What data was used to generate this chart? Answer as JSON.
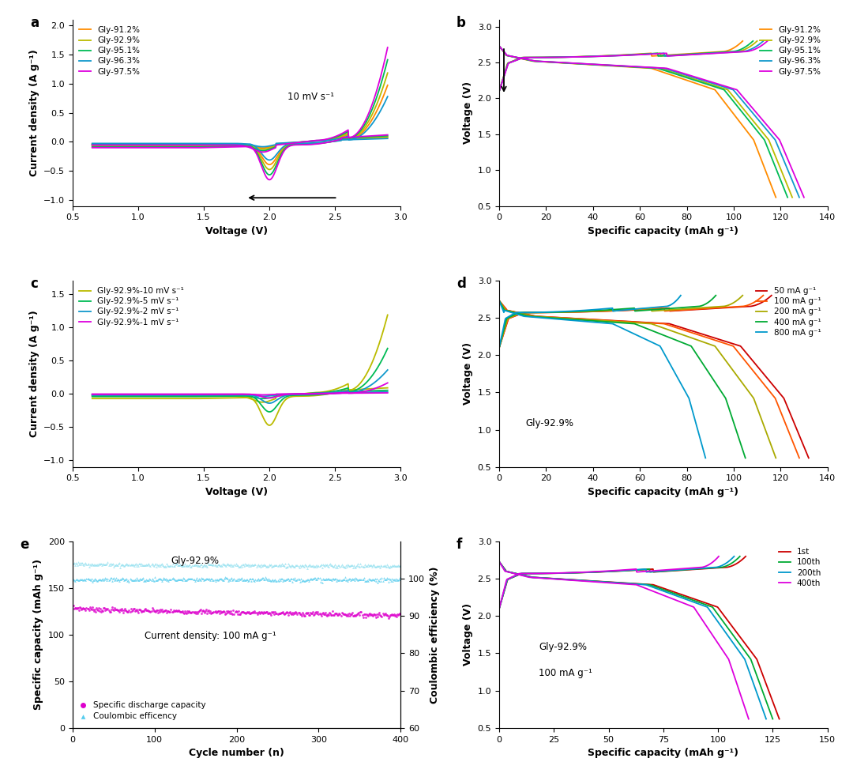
{
  "panel_a": {
    "label": "a",
    "xlabel": "Voltage (V)",
    "ylabel": "Current density (A g⁻¹)",
    "xlim": [
      0.65,
      3.0
    ],
    "ylim": [
      -1.1,
      2.1
    ],
    "xticks": [
      0.5,
      1.0,
      1.5,
      2.0,
      2.5,
      3.0
    ],
    "yticks": [
      -1.0,
      -0.5,
      0.0,
      0.5,
      1.0,
      1.5,
      2.0
    ],
    "annotation": "10 mV s⁻¹",
    "series_labels": [
      "Gly-91.2%",
      "Gly-92.9%",
      "Gly-95.1%",
      "Gly-96.3%",
      "Gly-97.5%"
    ],
    "series_colors": [
      "#FF8C00",
      "#BBBB00",
      "#00BB55",
      "#1199CC",
      "#DD00DD"
    ],
    "scales": [
      0.6,
      0.73,
      0.87,
      0.48,
      1.0
    ]
  },
  "panel_b": {
    "label": "b",
    "xlabel": "Specific capacity (mAh g⁻¹)",
    "ylabel": "Voltage (V)",
    "xlim": [
      0,
      140
    ],
    "ylim": [
      0.5,
      3.1
    ],
    "xticks": [
      0,
      20,
      40,
      60,
      80,
      100,
      120,
      140
    ],
    "yticks": [
      0.5,
      1.0,
      1.5,
      2.0,
      2.5,
      3.0
    ],
    "series_labels": [
      "Gly-91.2%",
      "Gly-92.9%",
      "Gly-95.1%",
      "Gly-96.3%",
      "Gly-97.5%"
    ],
    "series_colors": [
      "#FF8C00",
      "#BBBB00",
      "#00BB55",
      "#1199CC",
      "#DD00DD"
    ],
    "cap_discharge": [
      118,
      125,
      123,
      128,
      130
    ],
    "cap_charge": [
      10,
      10,
      10,
      10,
      10
    ]
  },
  "panel_c": {
    "label": "c",
    "xlabel": "Voltage (V)",
    "ylabel": "Current density (A g⁻¹)",
    "xlim": [
      0.65,
      3.0
    ],
    "ylim": [
      -1.1,
      1.7
    ],
    "xticks": [
      0.5,
      1.0,
      1.5,
      2.0,
      2.5,
      3.0
    ],
    "yticks": [
      -1.0,
      -0.5,
      0.0,
      0.5,
      1.0,
      1.5
    ],
    "series_labels": [
      "Gly-92.9%-10 mV s⁻¹",
      "Gly-92.9%-5 mV s⁻¹",
      "Gly-92.9%-2 mV s⁻¹",
      "Gly-92.9%-1 mV s⁻¹"
    ],
    "series_colors": [
      "#BBBB00",
      "#00BB55",
      "#1199CC",
      "#DD00DD"
    ],
    "scales": [
      0.73,
      0.42,
      0.22,
      0.1
    ]
  },
  "panel_d": {
    "label": "d",
    "xlabel": "Specific capacity (mAh g⁻¹)",
    "ylabel": "Voltage (V)",
    "xlim": [
      0,
      140
    ],
    "ylim": [
      0.5,
      3.0
    ],
    "xticks": [
      0,
      20,
      40,
      60,
      80,
      100,
      120,
      140
    ],
    "yticks": [
      0.5,
      1.0,
      1.5,
      2.0,
      2.5,
      3.0
    ],
    "annotation": "Gly-92.9%",
    "series_labels": [
      "50 mA g⁻¹",
      "100 mA g⁻¹",
      "200 mA g⁻¹",
      "400 mA g⁻¹",
      "800 mA g⁻¹"
    ],
    "series_colors": [
      "#CC0000",
      "#FF5500",
      "#AAAA00",
      "#00AA33",
      "#0099CC"
    ],
    "cap_discharge": [
      132,
      128,
      118,
      105,
      88
    ],
    "cap_charge": [
      10,
      10,
      10,
      10,
      10
    ]
  },
  "panel_e": {
    "label": "e",
    "xlabel": "Cycle number (n)",
    "ylabel": "Specific capacity (mAh g⁻¹)",
    "ylabel2": "Coulombic efficiency (%)",
    "xlim": [
      0,
      400
    ],
    "ylim": [
      0,
      200
    ],
    "ylim2": [
      60,
      110
    ],
    "xticks": [
      0,
      100,
      200,
      300,
      400
    ],
    "yticks": [
      0,
      50,
      100,
      150,
      200
    ],
    "yticks2": [
      60,
      70,
      80,
      90,
      100
    ],
    "annotation1": "Gly-92.9%",
    "annotation2": "Current density: 100 mA g⁻¹",
    "series_labels": [
      "Specific discharge capacity",
      "Coulombic efficency"
    ],
    "discharge_color": "#DD00CC",
    "ce_color": "#55CCEE",
    "charge_band_color": "#88DDEE",
    "discharge_level": 127,
    "charge_level": 175,
    "ce_level": 99.8
  },
  "panel_f": {
    "label": "f",
    "xlabel": "Specific capacity (mAh g⁻¹)",
    "ylabel": "Voltage (V)",
    "xlim": [
      0,
      150
    ],
    "ylim": [
      0.5,
      3.0
    ],
    "xticks": [
      0,
      25,
      50,
      75,
      100,
      125,
      150
    ],
    "yticks": [
      0.5,
      1.0,
      1.5,
      2.0,
      2.5,
      3.0
    ],
    "annotation1": "Gly-92.9%",
    "annotation2": "100 mA g⁻¹",
    "series_labels": [
      "1st",
      "100th",
      "200th",
      "400th"
    ],
    "series_colors": [
      "#CC0000",
      "#00AA33",
      "#0099CC",
      "#DD00DD"
    ],
    "cap_discharge": [
      128,
      125,
      122,
      114
    ]
  }
}
